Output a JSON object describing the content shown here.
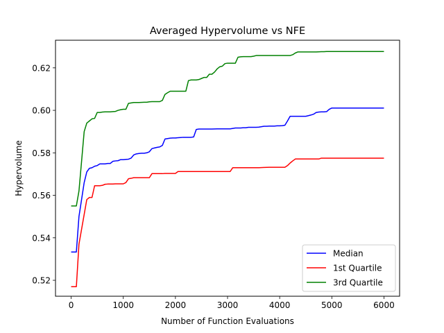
{
  "chart_data": {
    "type": "line",
    "title": "Averaged Hypervolume vs NFE",
    "xlabel": "Number of Function Evaluations",
    "ylabel": "Hypervolume",
    "xlim": [
      -300,
      6300
    ],
    "ylim": [
      0.5125,
      0.633
    ],
    "xticks": [
      0,
      1000,
      2000,
      3000,
      4000,
      5000,
      6000
    ],
    "yticks": [
      0.52,
      0.54,
      0.56,
      0.58,
      0.6,
      0.62
    ],
    "ytick_labels": [
      "0.52",
      "0.54",
      "0.56",
      "0.58",
      "0.60",
      "0.62"
    ],
    "grid": false,
    "legend_position": "lower-right",
    "series": [
      {
        "name": "Median",
        "color": "#0000ff",
        "x": [
          0,
          100,
          150,
          200,
          250,
          300,
          350,
          400,
          450,
          500,
          550,
          600,
          650,
          700,
          750,
          800,
          850,
          900,
          950,
          1000,
          1050,
          1100,
          1150,
          1200,
          1250,
          1300,
          1350,
          1400,
          1450,
          1500,
          1550,
          1600,
          1650,
          1700,
          1750,
          1800,
          1850,
          1900,
          1950,
          2000,
          2050,
          2100,
          2150,
          2200,
          2250,
          2300,
          2350,
          2400,
          2450,
          2500,
          2600,
          2700,
          2800,
          2900,
          3000,
          3050,
          3100,
          3150,
          3200,
          3250,
          3300,
          3350,
          3400,
          3450,
          3500,
          3550,
          3600,
          3650,
          3700,
          3750,
          3800,
          3850,
          3900,
          3950,
          4000,
          4050,
          4100,
          4150,
          4200,
          4250,
          4300,
          4400,
          4500,
          4550,
          4600,
          4650,
          4700,
          4750,
          4800,
          4850,
          4900,
          4950,
          5000,
          5500,
          6000
        ],
        "y": [
          0.5333,
          0.5333,
          0.55,
          0.558,
          0.566,
          0.571,
          0.5727,
          0.573,
          0.5737,
          0.574,
          0.5748,
          0.5748,
          0.5748,
          0.575,
          0.575,
          0.576,
          0.5762,
          0.5763,
          0.5768,
          0.5768,
          0.5769,
          0.577,
          0.5775,
          0.579,
          0.5795,
          0.5797,
          0.5798,
          0.5798,
          0.58,
          0.5805,
          0.582,
          0.5823,
          0.5826,
          0.5828,
          0.5835,
          0.5865,
          0.5867,
          0.5869,
          0.587,
          0.587,
          0.5871,
          0.5872,
          0.5873,
          0.5873,
          0.5873,
          0.5873,
          0.5875,
          0.591,
          0.5912,
          0.5912,
          0.5912,
          0.5912,
          0.5913,
          0.5913,
          0.5913,
          0.5913,
          0.5915,
          0.5917,
          0.5917,
          0.5917,
          0.5918,
          0.5918,
          0.592,
          0.592,
          0.592,
          0.592,
          0.5921,
          0.5923,
          0.5925,
          0.5925,
          0.5926,
          0.5926,
          0.5926,
          0.5927,
          0.5927,
          0.5928,
          0.593,
          0.595,
          0.5972,
          0.5972,
          0.5972,
          0.5972,
          0.5972,
          0.5975,
          0.5978,
          0.5982,
          0.599,
          0.5992,
          0.5993,
          0.5993,
          0.5994,
          0.6005,
          0.6011,
          0.6011,
          0.6011
        ]
      },
      {
        "name": "1st Quartile",
        "color": "#ff0000",
        "x": [
          0,
          100,
          150,
          200,
          250,
          300,
          350,
          400,
          450,
          500,
          550,
          600,
          650,
          700,
          750,
          800,
          850,
          900,
          950,
          1000,
          1050,
          1100,
          1150,
          1200,
          1250,
          1300,
          1350,
          1400,
          1450,
          1500,
          1550,
          1600,
          1650,
          1700,
          1750,
          1800,
          1850,
          1900,
          1950,
          2000,
          2050,
          2100,
          2200,
          2300,
          2400,
          2500,
          2600,
          2700,
          2800,
          2900,
          3000,
          3050,
          3100,
          3200,
          3300,
          3400,
          3500,
          3600,
          3700,
          3800,
          3900,
          4000,
          4100,
          4150,
          4200,
          4250,
          4300,
          4400,
          4500,
          4600,
          4700,
          4750,
          4800,
          4900,
          5000,
          5500,
          6000
        ],
        "y": [
          0.517,
          0.517,
          0.537,
          0.544,
          0.551,
          0.558,
          0.559,
          0.559,
          0.5645,
          0.5645,
          0.5645,
          0.5647,
          0.5652,
          0.5653,
          0.5653,
          0.5653,
          0.5654,
          0.5654,
          0.5654,
          0.5654,
          0.566,
          0.5678,
          0.568,
          0.5683,
          0.5683,
          0.5683,
          0.5683,
          0.5683,
          0.5683,
          0.5683,
          0.5702,
          0.5702,
          0.5702,
          0.5702,
          0.5702,
          0.5703,
          0.5703,
          0.5703,
          0.5703,
          0.5703,
          0.5712,
          0.5712,
          0.5712,
          0.5712,
          0.5712,
          0.5712,
          0.5712,
          0.5712,
          0.5712,
          0.5712,
          0.5712,
          0.5712,
          0.573,
          0.573,
          0.573,
          0.573,
          0.573,
          0.573,
          0.5731,
          0.5732,
          0.5732,
          0.5732,
          0.5732,
          0.574,
          0.5752,
          0.5762,
          0.5771,
          0.5771,
          0.5771,
          0.5771,
          0.5771,
          0.5771,
          0.5775,
          0.5775,
          0.5775,
          0.5775,
          0.5775
        ]
      },
      {
        "name": "3rd Quartile",
        "color": "#008000",
        "x": [
          0,
          100,
          150,
          200,
          250,
          300,
          350,
          400,
          450,
          500,
          550,
          600,
          650,
          700,
          750,
          800,
          850,
          900,
          950,
          1000,
          1050,
          1100,
          1150,
          1200,
          1300,
          1400,
          1450,
          1500,
          1550,
          1600,
          1650,
          1700,
          1750,
          1800,
          1850,
          1900,
          1950,
          2000,
          2050,
          2100,
          2150,
          2200,
          2250,
          2300,
          2350,
          2400,
          2450,
          2500,
          2550,
          2600,
          2650,
          2700,
          2750,
          2800,
          2850,
          2900,
          2950,
          3000,
          3050,
          3100,
          3150,
          3200,
          3250,
          3300,
          3350,
          3400,
          3450,
          3500,
          3550,
          3600,
          3700,
          3800,
          3900,
          4000,
          4100,
          4200,
          4250,
          4300,
          4350,
          4400,
          4500,
          4600,
          4700,
          4800,
          4850,
          4900,
          5000,
          5500,
          6000
        ],
        "y": [
          0.555,
          0.555,
          0.562,
          0.576,
          0.59,
          0.594,
          0.595,
          0.596,
          0.5962,
          0.599,
          0.599,
          0.5992,
          0.5993,
          0.5993,
          0.5993,
          0.5994,
          0.5995,
          0.6,
          0.6003,
          0.6005,
          0.6005,
          0.6033,
          0.6035,
          0.6037,
          0.6037,
          0.6038,
          0.6038,
          0.604,
          0.6041,
          0.6041,
          0.6041,
          0.6041,
          0.6047,
          0.6075,
          0.6083,
          0.609,
          0.609,
          0.609,
          0.609,
          0.609,
          0.609,
          0.609,
          0.614,
          0.6143,
          0.6143,
          0.6143,
          0.6145,
          0.615,
          0.6155,
          0.6155,
          0.617,
          0.617,
          0.618,
          0.6195,
          0.6205,
          0.6208,
          0.622,
          0.6222,
          0.6222,
          0.6222,
          0.6222,
          0.625,
          0.6252,
          0.6253,
          0.6253,
          0.6253,
          0.6253,
          0.6255,
          0.6258,
          0.6258,
          0.6258,
          0.6258,
          0.6258,
          0.6258,
          0.6258,
          0.6258,
          0.6262,
          0.627,
          0.6275,
          0.6275,
          0.6275,
          0.6275,
          0.6275,
          0.6276,
          0.6276,
          0.6277,
          0.6277,
          0.6277,
          0.6277
        ]
      }
    ]
  }
}
